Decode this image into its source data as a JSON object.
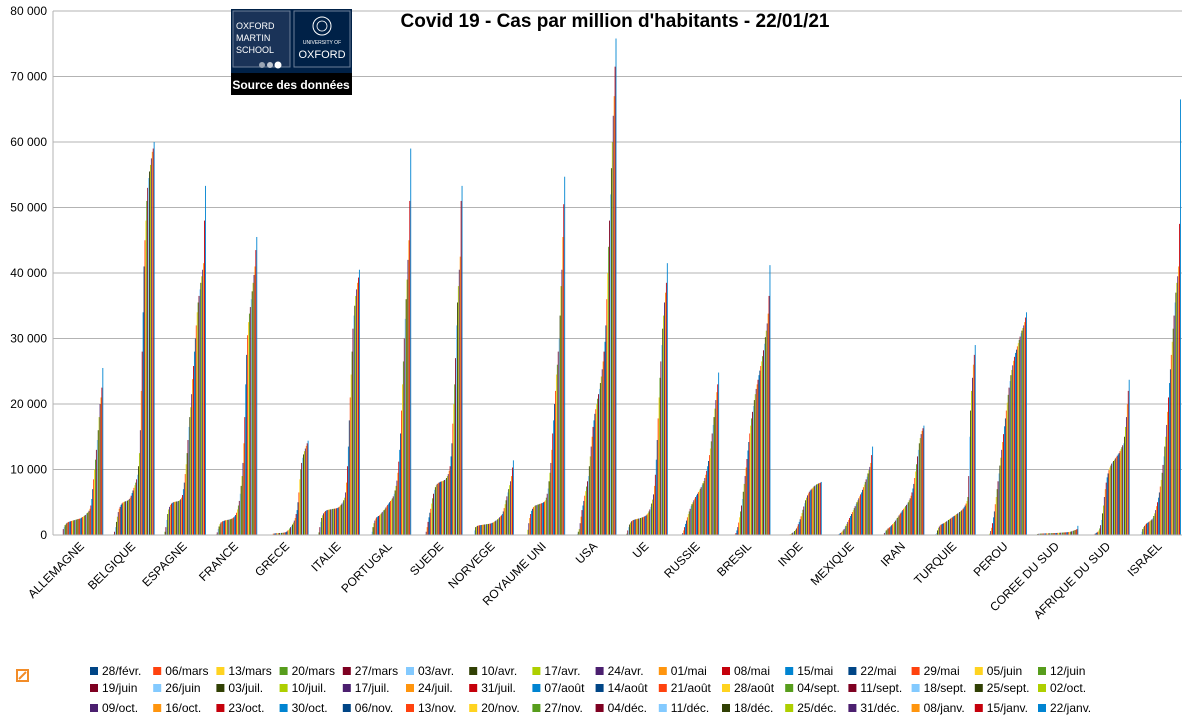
{
  "chart_data": {
    "type": "bar",
    "title": "Covid 19 - Cas par million d'habitants - 22/01/21",
    "ylim": [
      0,
      80000
    ],
    "yticks": [
      "0",
      "10 000",
      "20 000",
      "30 000",
      "40 000",
      "50 000",
      "60 000",
      "70 000",
      "80 000"
    ],
    "grid": true,
    "legend_position": "bottom",
    "categories": [
      "ALLEMAGNE",
      "BELGIQUE",
      "ESPAGNE",
      "FRANCE",
      "GRECE",
      "ITALIE",
      "PORTUGAL",
      "SUEDE",
      "NORVEGE",
      "ROYAUME UNI",
      "USA",
      "UE",
      "RUSSIE",
      "BRESIL",
      "INDE",
      "MEXIQUE",
      "IRAN",
      "TURQUIE",
      "PEROU",
      "COREE DU SUD",
      "AFRIQUE DU SUD",
      "ISRAEL"
    ],
    "series_names": [
      "28/févr.",
      "06/mars",
      "13/mars",
      "20/mars",
      "27/mars",
      "03/avr.",
      "10/avr.",
      "17/avr.",
      "24/avr.",
      "01/mai",
      "08/mai",
      "15/mai",
      "22/mai",
      "29/mai",
      "05/juin",
      "12/juin",
      "19/juin",
      "26/juin",
      "03/juil.",
      "10/juil.",
      "17/juil.",
      "24/juil.",
      "31/juil.",
      "07/août",
      "14/août",
      "21/août",
      "28/août",
      "04/sept.",
      "11/sept.",
      "18/sept.",
      "25/sept.",
      "02/oct.",
      "09/oct.",
      "16/oct.",
      "23/oct.",
      "30/oct.",
      "06/nov.",
      "13/nov.",
      "20/nov.",
      "27/nov.",
      "04/déc.",
      "11/déc.",
      "18/déc.",
      "25/déc.",
      "31/déc.",
      "08/janv.",
      "15/janv.",
      "22/janv."
    ],
    "series_colors": [
      "#004586",
      "#ff420e",
      "#ffd320",
      "#579d1c",
      "#7e0021",
      "#83caff",
      "#314004",
      "#aecf00",
      "#4b1f6f",
      "#ff950e",
      "#c5000b",
      "#0084d1"
    ],
    "values": [
      [
        0,
        0,
        0,
        0,
        900,
        1200,
        1500,
        1700,
        1850,
        1950,
        2000,
        2050,
        2100,
        2150,
        2200,
        2230,
        2270,
        2300,
        2350,
        2400,
        2430,
        2470,
        2500,
        2550,
        2650,
        2750,
        2850,
        2950,
        3050,
        3200,
        3350,
        3500,
        3700,
        4000,
        4500,
        5500,
        7000,
        8500,
        10000,
        11500,
        13000,
        14500,
        16000,
        18000,
        20000,
        21000,
        22500,
        25500
      ],
      [
        0,
        0,
        0,
        100,
        500,
        1200,
        2000,
        2800,
        3500,
        4000,
        4300,
        4600,
        4800,
        4950,
        5050,
        5100,
        5150,
        5200,
        5250,
        5350,
        5500,
        5700,
        6000,
        6400,
        6800,
        7200,
        7600,
        8000,
        8500,
        9200,
        10500,
        12500,
        16000,
        22000,
        28000,
        34000,
        41000,
        45000,
        48000,
        51000,
        53000,
        54500,
        55500,
        56500,
        57500,
        58500,
        59000,
        60000
      ],
      [
        0,
        0,
        0,
        500,
        1200,
        2300,
        3200,
        3900,
        4300,
        4600,
        4800,
        4900,
        5000,
        5050,
        5080,
        5100,
        5130,
        5160,
        5200,
        5300,
        5450,
        5700,
        6100,
        7000,
        8000,
        9300,
        10800,
        12500,
        14500,
        16500,
        18000,
        19500,
        21500,
        23800,
        25800,
        28000,
        30000,
        32000,
        34000,
        35500,
        36500,
        37500,
        38500,
        39500,
        40500,
        41500,
        48000,
        53300
      ],
      [
        0,
        0,
        0,
        100,
        400,
        900,
        1300,
        1650,
        1900,
        2000,
        2100,
        2150,
        2200,
        2250,
        2270,
        2300,
        2330,
        2360,
        2400,
        2450,
        2500,
        2600,
        2700,
        2850,
        3050,
        3400,
        3900,
        4500,
        5200,
        6300,
        7500,
        9000,
        11000,
        14000,
        18000,
        23000,
        27500,
        30500,
        32500,
        33800,
        34800,
        36000,
        37200,
        38500,
        39700,
        41000,
        43500,
        45500
      ],
      [
        0,
        0,
        0,
        0,
        0,
        0,
        0,
        0,
        0,
        200,
        220,
        240,
        260,
        270,
        280,
        290,
        300,
        310,
        320,
        330,
        350,
        380,
        400,
        450,
        550,
        700,
        800,
        1000,
        1200,
        1400,
        1600,
        1900,
        2200,
        2600,
        3200,
        3800,
        5000,
        6500,
        8500,
        10000,
        11000,
        11800,
        12300,
        12800,
        13200,
        13600,
        14000,
        14400
      ],
      [
        0,
        0,
        0,
        400,
        1200,
        2000,
        2600,
        3000,
        3300,
        3500,
        3650,
        3750,
        3800,
        3850,
        3880,
        3900,
        3920,
        3950,
        3980,
        4000,
        4020,
        4050,
        4080,
        4120,
        4200,
        4300,
        4450,
        4600,
        4800,
        5000,
        5300,
        5700,
        6500,
        8000,
        10500,
        13500,
        17500,
        21000,
        24500,
        28000,
        31500,
        33500,
        35000,
        36500,
        37500,
        38500,
        39300,
        40500
      ],
      [
        0,
        0,
        0,
        0,
        100,
        500,
        1200,
        1800,
        2200,
        2500,
        2700,
        2800,
        2900,
        3000,
        3150,
        3300,
        3500,
        3650,
        3800,
        4000,
        4200,
        4400,
        4600,
        4800,
        5000,
        5200,
        5400,
        5600,
        5900,
        6300,
        6800,
        7500,
        8300,
        9500,
        11200,
        13000,
        15500,
        19000,
        23000,
        26500,
        30000,
        33000,
        36000,
        39000,
        42000,
        45000,
        51000,
        59000
      ],
      [
        0,
        0,
        0,
        0,
        0,
        0,
        0,
        100,
        500,
        1200,
        2000,
        2700,
        3400,
        4000,
        4800,
        5600,
        6300,
        6900,
        7300,
        7600,
        7800,
        7900,
        8000,
        8100,
        8150,
        8200,
        8250,
        8300,
        8400,
        8500,
        8700,
        9000,
        9300,
        9800,
        10500,
        12000,
        14000,
        17000,
        20000,
        23000,
        27000,
        32000,
        35500,
        38000,
        40500,
        42500,
        51000,
        53300
      ],
      [
        0,
        0,
        0,
        0,
        0,
        700,
        1200,
        1300,
        1400,
        1450,
        1480,
        1500,
        1520,
        1550,
        1570,
        1590,
        1610,
        1630,
        1650,
        1670,
        1690,
        1720,
        1750,
        1790,
        1850,
        1920,
        2000,
        2100,
        2200,
        2300,
        2400,
        2550,
        2700,
        2850,
        3000,
        3200,
        3600,
        4100,
        4700,
        5300,
        5900,
        6500,
        7000,
        7600,
        8200,
        9000,
        10300,
        11400
      ],
      [
        0,
        0,
        0,
        0,
        0,
        0,
        0,
        800,
        1800,
        2600,
        3200,
        3700,
        4000,
        4250,
        4400,
        4500,
        4550,
        4600,
        4650,
        4700,
        4750,
        4800,
        4850,
        4900,
        5000,
        5100,
        5300,
        5700,
        6300,
        7100,
        8200,
        9500,
        11000,
        13000,
        15500,
        17500,
        20000,
        22000,
        24500,
        26000,
        28000,
        30000,
        33500,
        38000,
        40500,
        45500,
        50500,
        54700
      ],
      [
        0,
        0,
        0,
        0,
        0,
        200,
        500,
        900,
        1800,
        2800,
        3800,
        4500,
        5200,
        6000,
        6700,
        7400,
        8200,
        9000,
        10500,
        12000,
        13500,
        15000,
        16500,
        17500,
        18500,
        19200,
        20000,
        20800,
        21500,
        22300,
        23200,
        24200,
        25300,
        26500,
        28000,
        29500,
        32000,
        36000,
        40000,
        44000,
        48000,
        52000,
        56000,
        60000,
        64000,
        67000,
        71500,
        75800
      ],
      [
        0,
        0,
        0,
        200,
        700,
        1200,
        1600,
        1900,
        2100,
        2200,
        2280,
        2330,
        2380,
        2420,
        2450,
        2480,
        2520,
        2560,
        2600,
        2650,
        2700,
        2760,
        2830,
        2900,
        3000,
        3150,
        3350,
        3600,
        3900,
        4300,
        4800,
        5400,
        6200,
        7500,
        9200,
        11500,
        14500,
        17800,
        21000,
        24000,
        26500,
        29000,
        31500,
        33500,
        35500,
        37000,
        38500,
        41500
      ],
      [
        0,
        0,
        0,
        0,
        0,
        0,
        0,
        100,
        300,
        700,
        1200,
        1700,
        2200,
        2700,
        3200,
        3600,
        4000,
        4400,
        4700,
        5000,
        5300,
        5550,
        5800,
        6050,
        6300,
        6550,
        6800,
        7050,
        7300,
        7600,
        7900,
        8250,
        8700,
        9200,
        9800,
        10500,
        11300,
        12200,
        13200,
        14300,
        15500,
        16800,
        18000,
        19300,
        20600,
        21800,
        23000,
        24800
      ],
      [
        0,
        0,
        0,
        0,
        0,
        0,
        0,
        0,
        0,
        100,
        300,
        700,
        1200,
        1900,
        2700,
        3600,
        4500,
        5500,
        6600,
        7800,
        9000,
        10300,
        11600,
        12900,
        14200,
        15500,
        16700,
        17800,
        18800,
        19700,
        20600,
        21500,
        22300,
        23000,
        23700,
        24400,
        25100,
        25800,
        26500,
        27300,
        28200,
        29200,
        30200,
        31200,
        32300,
        33800,
        36500,
        41200
      ],
      [
        0,
        0,
        0,
        0,
        0,
        0,
        0,
        0,
        0,
        0,
        0,
        0,
        50,
        100,
        150,
        250,
        350,
        450,
        600,
        800,
        1000,
        1300,
        1650,
        2000,
        2400,
        2850,
        3350,
        3850,
        4350,
        4850,
        5300,
        5700,
        6050,
        6350,
        6600,
        6800,
        6950,
        7100,
        7250,
        7400,
        7520,
        7620,
        7720,
        7800,
        7870,
        7930,
        7990,
        8100
      ],
      [
        0,
        0,
        0,
        0,
        0,
        0,
        0,
        0,
        0,
        50,
        100,
        200,
        300,
        400,
        550,
        700,
        900,
        1150,
        1400,
        1700,
        2000,
        2300,
        2600,
        2900,
        3200,
        3500,
        3800,
        4100,
        4400,
        4700,
        5000,
        5300,
        5600,
        5900,
        6200,
        6500,
        6900,
        7300,
        7700,
        8100,
        8500,
        8900,
        9400,
        9900,
        10400,
        11000,
        12200,
        13500
      ],
      [
        0,
        0,
        0,
        0,
        300,
        500,
        700,
        850,
        1000,
        1100,
        1200,
        1350,
        1500,
        1650,
        1800,
        2000,
        2200,
        2400,
        2600,
        2800,
        3000,
        3200,
        3400,
        3600,
        3800,
        4000,
        4200,
        4400,
        4600,
        4800,
        5000,
        5300,
        5600,
        6000,
        6500,
        7100,
        7800,
        8700,
        9700,
        10800,
        12000,
        13000,
        14000,
        14800,
        15400,
        15900,
        16300,
        16700
      ],
      [
        0,
        0,
        0,
        0,
        100,
        300,
        700,
        1100,
        1300,
        1500,
        1600,
        1680,
        1750,
        1820,
        1900,
        2000,
        2100,
        2200,
        2300,
        2400,
        2500,
        2600,
        2700,
        2800,
        2900,
        3000,
        3100,
        3200,
        3300,
        3400,
        3500,
        3600,
        3750,
        3900,
        4050,
        4250,
        4500,
        4800,
        5200,
        5800,
        9000,
        15000,
        19000,
        22000,
        24000,
        26000,
        27500,
        29000
      ],
      [
        0,
        0,
        0,
        0,
        0,
        0,
        0,
        200,
        600,
        1100,
        1800,
        2700,
        3600,
        4700,
        5800,
        7000,
        8200,
        9400,
        10600,
        11800,
        13000,
        14200,
        15400,
        16600,
        17800,
        19000,
        20200,
        21400,
        22500,
        23500,
        24400,
        25200,
        25900,
        26600,
        27200,
        27800,
        28300,
        28800,
        29300,
        29800,
        30300,
        30800,
        31200,
        31600,
        32000,
        32500,
        33200,
        34000
      ],
      [
        0,
        0,
        0,
        150,
        180,
        200,
        210,
        220,
        225,
        230,
        235,
        240,
        245,
        250,
        255,
        260,
        265,
        270,
        275,
        280,
        285,
        290,
        295,
        300,
        310,
        320,
        330,
        340,
        350,
        360,
        370,
        380,
        390,
        400,
        410,
        420,
        430,
        450,
        480,
        510,
        550,
        600,
        650,
        700,
        750,
        800,
        900,
        1400
      ],
      [
        0,
        0,
        0,
        0,
        0,
        0,
        0,
        0,
        0,
        100,
        200,
        300,
        400,
        500,
        700,
        1000,
        1500,
        2300,
        3300,
        4500,
        5800,
        7000,
        8000,
        8800,
        9400,
        9900,
        10300,
        10600,
        10900,
        11100,
        11300,
        11500,
        11700,
        11900,
        12100,
        12300,
        12500,
        12800,
        13100,
        13400,
        13700,
        14000,
        15000,
        16500,
        18000,
        20000,
        22000,
        23700
      ],
      [
        0,
        0,
        0,
        0,
        100,
        500,
        900,
        1200,
        1400,
        1600,
        1750,
        1850,
        1950,
        2050,
        2150,
        2250,
        2400,
        2600,
        2900,
        3300,
        3800,
        4400,
        5000,
        5700,
        6500,
        7400,
        8400,
        9500,
        10700,
        12000,
        13500,
        15000,
        16800,
        18800,
        21000,
        23200,
        25300,
        27500,
        29500,
        31500,
        33500,
        35500,
        37000,
        38500,
        39500,
        41000,
        47500,
        66500
      ]
    ]
  },
  "logo": {
    "left_lines": [
      "OXFORD",
      "MARTIN",
      "SCHOOL"
    ],
    "right_small": "UNIVERSITY OF",
    "right_big": "OXFORD",
    "caption": "Source des données"
  }
}
